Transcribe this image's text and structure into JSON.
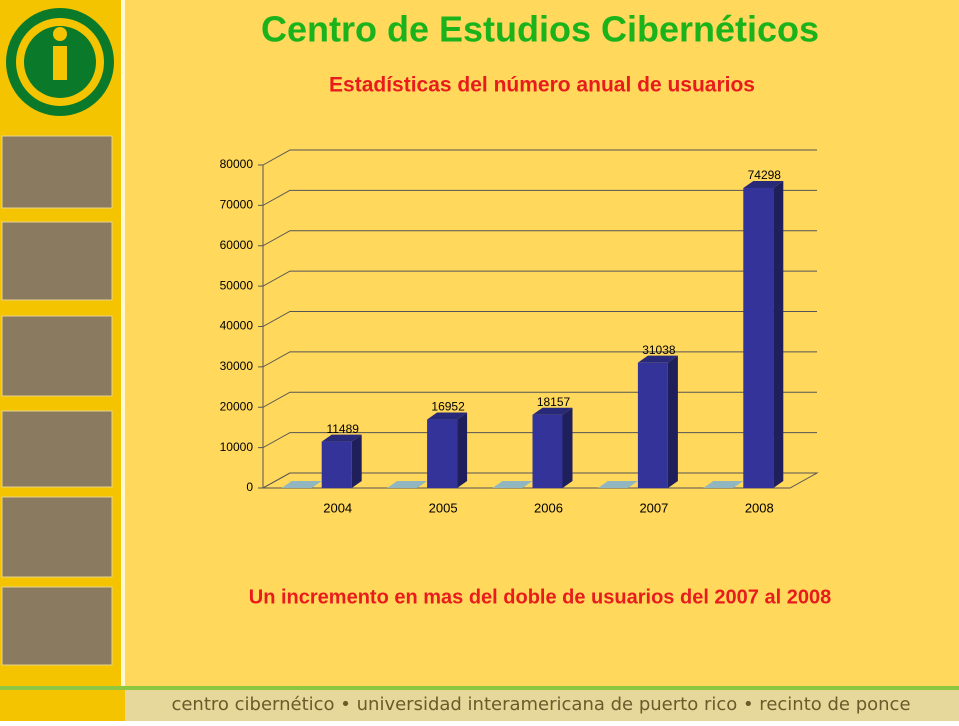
{
  "header": {
    "title": "Centro de Estudios Cibernéticos"
  },
  "chart_data": {
    "type": "bar3d",
    "title": "Estadísticas del número anual de usuarios",
    "categories": [
      "2004",
      "2005",
      "2006",
      "2007",
      "2008"
    ],
    "series": [
      {
        "color": "#b7e3ef",
        "values": [
          0,
          0,
          0,
          0,
          0
        ]
      },
      {
        "color": "#333399",
        "values": [
          11489,
          16952,
          18157,
          31038,
          74298
        ],
        "data_labels": true
      }
    ],
    "ylim": [
      0,
      80000
    ],
    "yticks": [
      0,
      10000,
      20000,
      30000,
      40000,
      50000,
      60000,
      70000,
      80000
    ],
    "grid": true
  },
  "annotation": "Un incremento en mas del doble de usuarios del 2007 al 2008",
  "footer": "centro cibernético • universidad interamericana de puerto rico • recinto de ponce"
}
